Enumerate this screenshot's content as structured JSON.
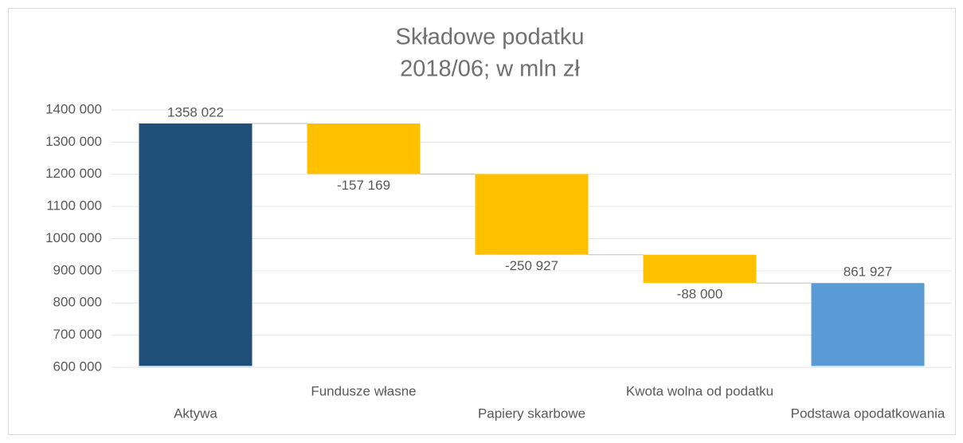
{
  "chart_data": {
    "type": "waterfall",
    "title": "Składowe podatku",
    "subtitle": "2018/06; w mln zł",
    "categories": [
      "Aktywa",
      "Fundusze własne",
      "Papiery skarbowe",
      "Kwota wolna od podatku",
      "Podstawa opodatkowania"
    ],
    "values": [
      1358022,
      -157169,
      -250927,
      -88000,
      861927
    ],
    "value_labels": [
      "1358 022",
      "-157 169",
      "-250 927",
      "-88 000",
      "861 927"
    ],
    "measure": [
      "absolute",
      "relative",
      "relative",
      "relative",
      "absolute"
    ],
    "colors": [
      "#1f4e79",
      "#ffc000",
      "#ffc000",
      "#ffc000",
      "#5b9bd5"
    ],
    "ylim": [
      600000,
      1400000
    ],
    "yticks": [
      {
        "value": 600000,
        "label": "600 000"
      },
      {
        "value": 700000,
        "label": "700 000"
      },
      {
        "value": 800000,
        "label": "800 000"
      },
      {
        "value": 900000,
        "label": "900 000"
      },
      {
        "value": 1000000,
        "label": "1000 000"
      },
      {
        "value": 1100000,
        "label": "1100 000"
      },
      {
        "value": 1200000,
        "label": "1200 000"
      },
      {
        "value": 1300000,
        "label": "1300 000"
      },
      {
        "value": 1400000,
        "label": "1400 000"
      }
    ],
    "grid": true
  }
}
